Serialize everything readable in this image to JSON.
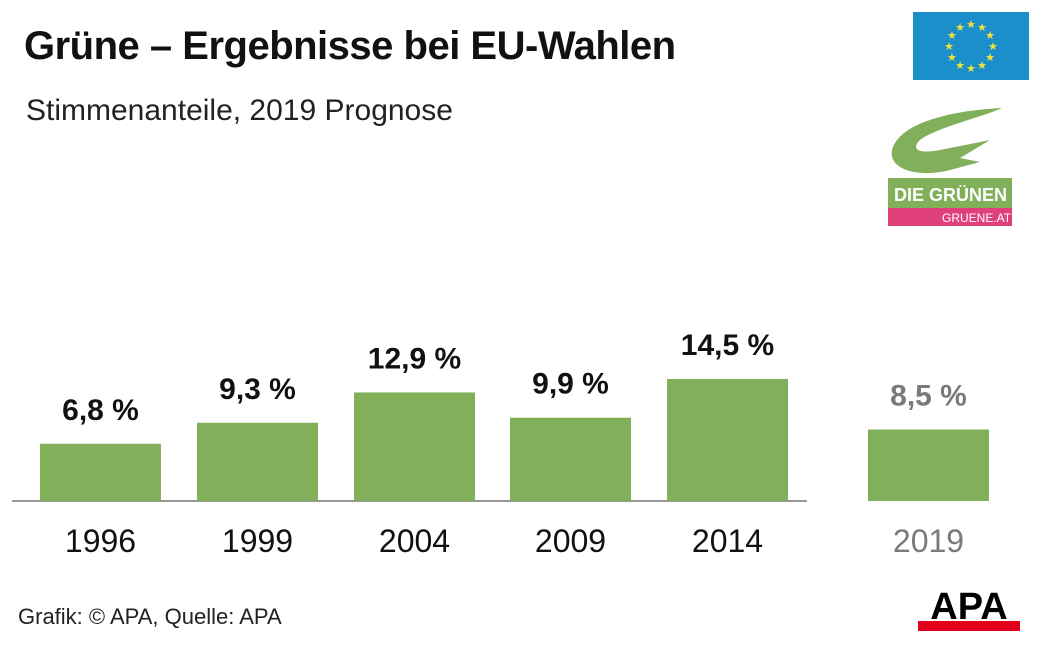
{
  "header": {
    "title": "Grüne – Ergebnisse bei EU-Wahlen",
    "subtitle": "Stimmenanteile, 2019 Prognose"
  },
  "footer": {
    "credit": "Grafik: © APA, Quelle: APA"
  },
  "logos": {
    "eu_flag": "eu-flag",
    "gruene": {
      "name": "DIE GRÜNEN",
      "url": "GRUENE.AT"
    },
    "apa": "APA"
  },
  "colors": {
    "bar": "#82b05a",
    "text": "#111111",
    "forecast_text": "#7a7a7a",
    "eu_blue": "#1b8fc9",
    "eu_star": "#f2e33a",
    "gruene_pink": "#e0407a",
    "apa_red": "#e2001a"
  },
  "chart_data": {
    "type": "bar",
    "title": "Grüne – Ergebnisse bei EU-Wahlen",
    "subtitle": "Stimmenanteile, 2019 Prognose",
    "categories": [
      "1996",
      "1999",
      "2004",
      "2009",
      "2014",
      "2019"
    ],
    "values": [
      6.8,
      9.3,
      12.9,
      9.9,
      14.5,
      8.5
    ],
    "labels": [
      "6,8 %",
      "9,3 %",
      "12,9 %",
      "9,9 %",
      "14,5 %",
      "8,5 %"
    ],
    "forecast": [
      false,
      false,
      false,
      false,
      false,
      true
    ],
    "ylim": [
      0,
      14.5
    ],
    "grid": false,
    "legend": "none"
  }
}
